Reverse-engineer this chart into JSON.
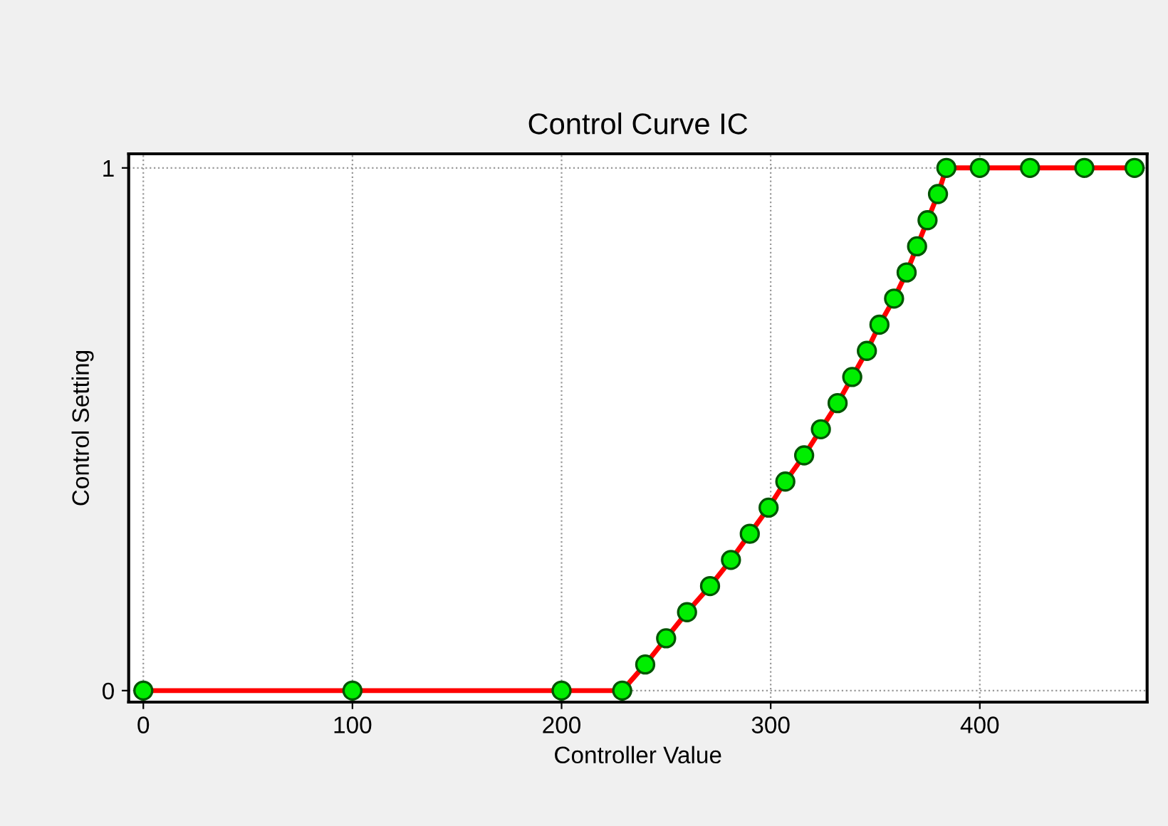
{
  "chart_data": {
    "type": "line",
    "title": "Control Curve IC",
    "xlabel": "Controller Value",
    "ylabel": "Control Setting",
    "x": [
      0,
      100,
      200,
      229,
      240,
      250,
      260,
      271,
      281,
      290,
      299,
      307,
      316,
      324,
      332,
      339,
      346,
      352,
      359,
      365,
      370,
      375,
      380,
      384,
      400,
      424,
      450,
      474
    ],
    "series": [
      {
        "color": "#ff0000",
        "values": [
          0,
          0,
          0,
          0,
          0.05,
          0.1,
          0.15,
          0.2,
          0.25,
          0.3,
          0.35,
          0.4,
          0.45,
          0.5,
          0.55,
          0.6,
          0.65,
          0.7,
          0.75,
          0.8,
          0.85,
          0.9,
          0.95,
          1,
          1,
          1,
          1,
          1
        ]
      }
    ],
    "marker": "circle",
    "line_style": "solid",
    "grid": true,
    "xlim": [
      -7,
      480
    ],
    "ylim": [
      -0.022,
      1.027
    ],
    "xticks": [
      0,
      100,
      200,
      300,
      400
    ],
    "yticks": [
      0,
      1
    ]
  }
}
